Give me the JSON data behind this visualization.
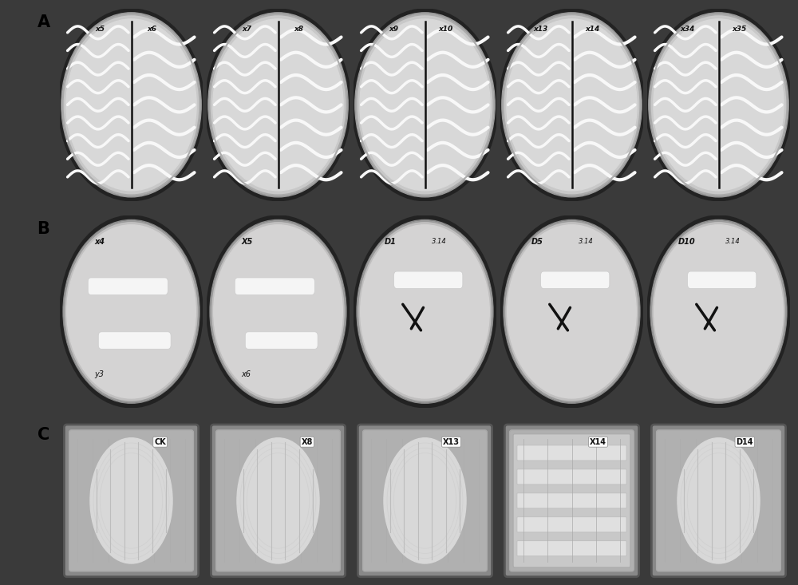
{
  "figure_width": 10.0,
  "figure_height": 7.33,
  "dpi": 100,
  "background_color": "#3a3a3a",
  "row_labels": [
    "A",
    "B",
    "C"
  ],
  "row_A_labels": [
    [
      "x5",
      "x6"
    ],
    [
      "x7",
      "x8"
    ],
    [
      "x9",
      "x10"
    ],
    [
      "x13",
      "x14"
    ],
    [
      "x34",
      "x35"
    ]
  ],
  "row_B_labels_top": [
    "x4",
    "X5",
    "D1",
    "D5",
    "D10"
  ],
  "row_B_labels_bot": [
    "y3",
    "x6",
    "3.14",
    "3.14",
    "3.14"
  ],
  "row_B_has_cross": [
    false,
    false,
    true,
    true,
    true
  ],
  "row_C_labels": [
    "CK",
    "X8",
    "X13",
    "X14",
    "D14"
  ],
  "row_C_x14_special": true,
  "bg_dark": "#404040",
  "bg_between": "#505050",
  "plate_A_fill": "#c8c8c8",
  "plate_A_inner": "#d8d8d8",
  "plate_B_fill": "#c0bfbf",
  "plate_B_inner": "#d4d3d3",
  "plate_C_outer": "#888888",
  "plate_C_inner": "#b0b0b0",
  "plate_C_colony": "#d8d8d8",
  "colony_streak": "#f0f0f0",
  "strip_color": "#f5f5f5",
  "label_color": "#111111",
  "white_label": "#ffffff"
}
